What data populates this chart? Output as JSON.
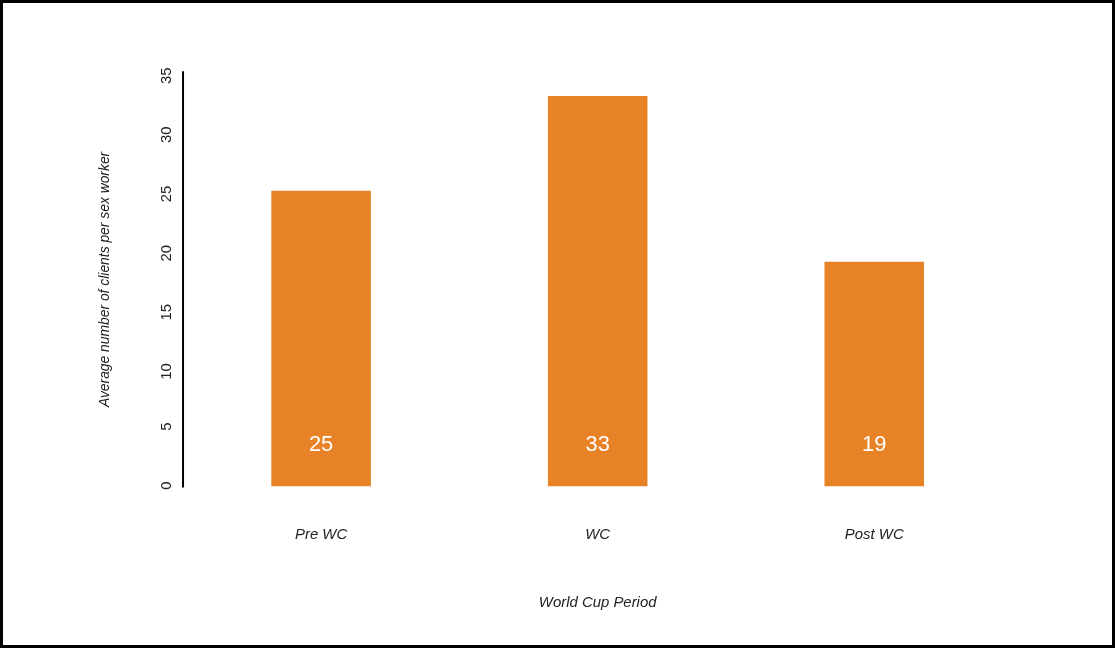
{
  "chart_data": {
    "type": "bar",
    "xlabel": "World Cup Period",
    "ylabel": "Average number of clients per sex worker",
    "categories": [
      "Pre WC",
      "WC",
      "Post WC"
    ],
    "values": [
      25,
      33,
      19
    ],
    "color": "#e88226",
    "ylim": [
      0,
      35
    ],
    "yticks": [
      0,
      5,
      10,
      15,
      20,
      25,
      30,
      35
    ],
    "value_labels": [
      "25",
      "33",
      "19"
    ],
    "grid": false,
    "legend": false
  }
}
